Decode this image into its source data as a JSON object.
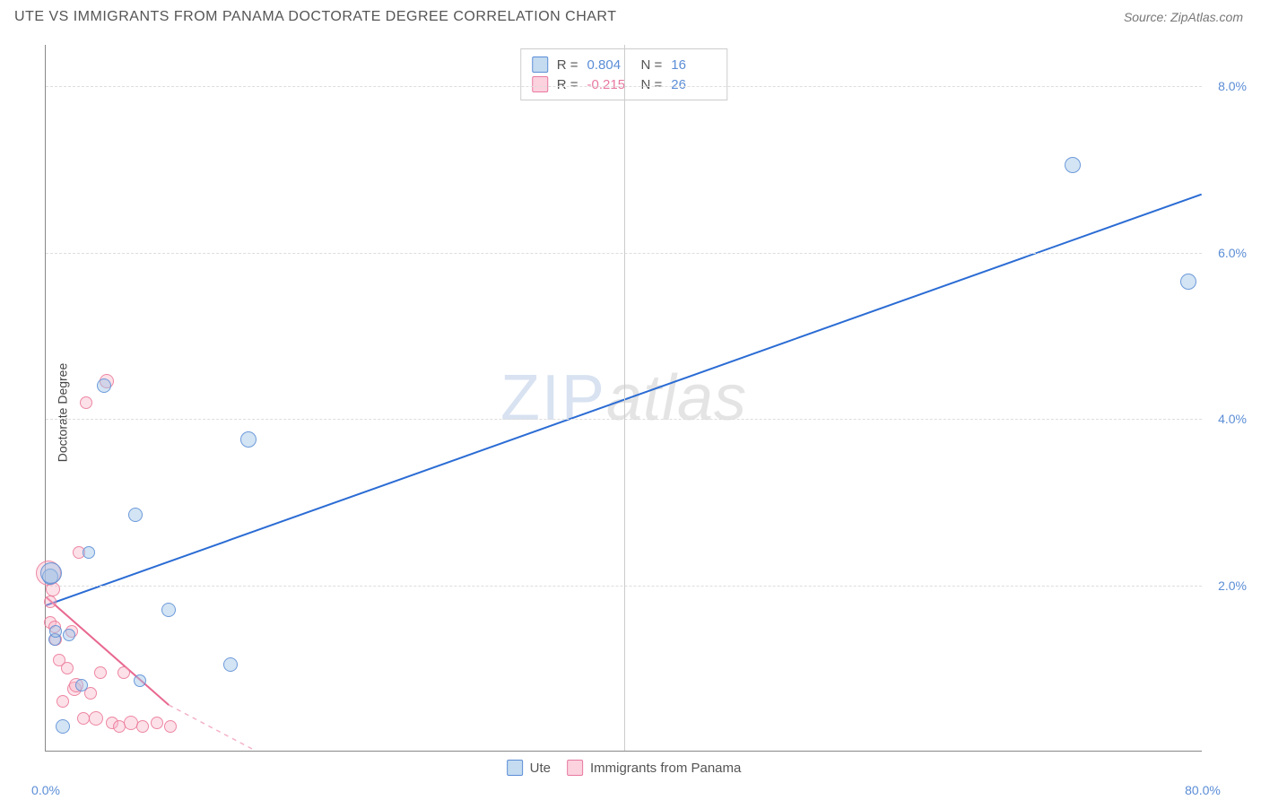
{
  "title": "UTE VS IMMIGRANTS FROM PANAMA DOCTORATE DEGREE CORRELATION CHART",
  "source": "Source: ZipAtlas.com",
  "watermark": {
    "zip": "ZIP",
    "atlas": "atlas"
  },
  "y_axis_label": "Doctorate Degree",
  "chart": {
    "type": "scatter",
    "xlim": [
      0,
      80
    ],
    "ylim": [
      0,
      8.5
    ],
    "x_ticks": [
      {
        "pos": 0,
        "label": "0.0%"
      },
      {
        "pos": 80,
        "label": "80.0%"
      }
    ],
    "x_gridlines": [
      40
    ],
    "y_ticks": [
      {
        "pos": 2.0,
        "label": "2.0%"
      },
      {
        "pos": 4.0,
        "label": "4.0%"
      },
      {
        "pos": 6.0,
        "label": "6.0%"
      },
      {
        "pos": 8.0,
        "label": "8.0%"
      }
    ],
    "background_color": "#ffffff",
    "grid_color": "#dddddd",
    "series": [
      {
        "name": "Ute",
        "color_fill": "rgba(157,195,230,0.45)",
        "color_stroke": "#5b8dd6",
        "trend": {
          "x1": 0,
          "y1": 1.75,
          "x2": 80,
          "y2": 6.7,
          "color": "#2b6cd4",
          "width": 2
        },
        "r": 0.804,
        "n": 16,
        "points": [
          {
            "x": 0.3,
            "y": 2.1,
            "r": 9
          },
          {
            "x": 0.4,
            "y": 2.15,
            "r": 12
          },
          {
            "x": 0.6,
            "y": 1.35,
            "r": 7
          },
          {
            "x": 0.7,
            "y": 1.45,
            "r": 7
          },
          {
            "x": 1.2,
            "y": 0.3,
            "r": 8
          },
          {
            "x": 1.6,
            "y": 1.4,
            "r": 7
          },
          {
            "x": 2.5,
            "y": 0.8,
            "r": 7
          },
          {
            "x": 3.0,
            "y": 2.4,
            "r": 7
          },
          {
            "x": 4.0,
            "y": 4.4,
            "r": 8
          },
          {
            "x": 6.2,
            "y": 2.85,
            "r": 8
          },
          {
            "x": 6.5,
            "y": 0.85,
            "r": 7
          },
          {
            "x": 8.5,
            "y": 1.7,
            "r": 8
          },
          {
            "x": 12.8,
            "y": 1.05,
            "r": 8
          },
          {
            "x": 14.0,
            "y": 3.75,
            "r": 9
          },
          {
            "x": 71.0,
            "y": 7.05,
            "r": 9
          },
          {
            "x": 79.0,
            "y": 5.65,
            "r": 9
          }
        ]
      },
      {
        "name": "Immigrants from Panama",
        "color_fill": "rgba(248,180,200,0.4)",
        "color_stroke": "#e878a0",
        "trend": {
          "x1": 0,
          "y1": 1.85,
          "x2": 8.5,
          "y2": 0.55,
          "dash_extend_x": 14.5,
          "color": "#e86890",
          "width": 2
        },
        "r": -0.215,
        "n": 26,
        "points": [
          {
            "x": 0.2,
            "y": 2.15,
            "r": 14
          },
          {
            "x": 0.3,
            "y": 1.55,
            "r": 7
          },
          {
            "x": 0.3,
            "y": 1.8,
            "r": 7
          },
          {
            "x": 0.5,
            "y": 1.95,
            "r": 8
          },
          {
            "x": 0.6,
            "y": 1.5,
            "r": 7
          },
          {
            "x": 0.7,
            "y": 1.35,
            "r": 7
          },
          {
            "x": 0.9,
            "y": 1.1,
            "r": 7
          },
          {
            "x": 1.2,
            "y": 0.6,
            "r": 7
          },
          {
            "x": 1.5,
            "y": 1.0,
            "r": 7
          },
          {
            "x": 1.8,
            "y": 1.45,
            "r": 7
          },
          {
            "x": 2.0,
            "y": 0.75,
            "r": 8
          },
          {
            "x": 2.1,
            "y": 0.8,
            "r": 8
          },
          {
            "x": 2.3,
            "y": 2.4,
            "r": 7
          },
          {
            "x": 2.6,
            "y": 0.4,
            "r": 7
          },
          {
            "x": 2.8,
            "y": 4.2,
            "r": 7
          },
          {
            "x": 3.1,
            "y": 0.7,
            "r": 7
          },
          {
            "x": 3.5,
            "y": 0.4,
            "r": 8
          },
          {
            "x": 3.8,
            "y": 0.95,
            "r": 7
          },
          {
            "x": 4.2,
            "y": 4.45,
            "r": 8
          },
          {
            "x": 4.6,
            "y": 0.35,
            "r": 7
          },
          {
            "x": 5.1,
            "y": 0.3,
            "r": 7
          },
          {
            "x": 5.4,
            "y": 0.95,
            "r": 7
          },
          {
            "x": 5.9,
            "y": 0.35,
            "r": 8
          },
          {
            "x": 6.7,
            "y": 0.3,
            "r": 7
          },
          {
            "x": 7.7,
            "y": 0.35,
            "r": 7
          },
          {
            "x": 8.6,
            "y": 0.3,
            "r": 7
          }
        ]
      }
    ]
  },
  "legend_top": {
    "rows": [
      {
        "swatch": "blue",
        "r_label": "R =",
        "r_val": "0.804",
        "n_label": "N =",
        "n_val": "16",
        "neg": false
      },
      {
        "swatch": "pink",
        "r_label": "R =",
        "r_val": "-0.215",
        "n_label": "N =",
        "n_val": "26",
        "neg": true
      }
    ]
  },
  "legend_bottom": {
    "items": [
      {
        "swatch": "blue",
        "label": "Ute"
      },
      {
        "swatch": "pink",
        "label": "Immigrants from Panama"
      }
    ]
  }
}
